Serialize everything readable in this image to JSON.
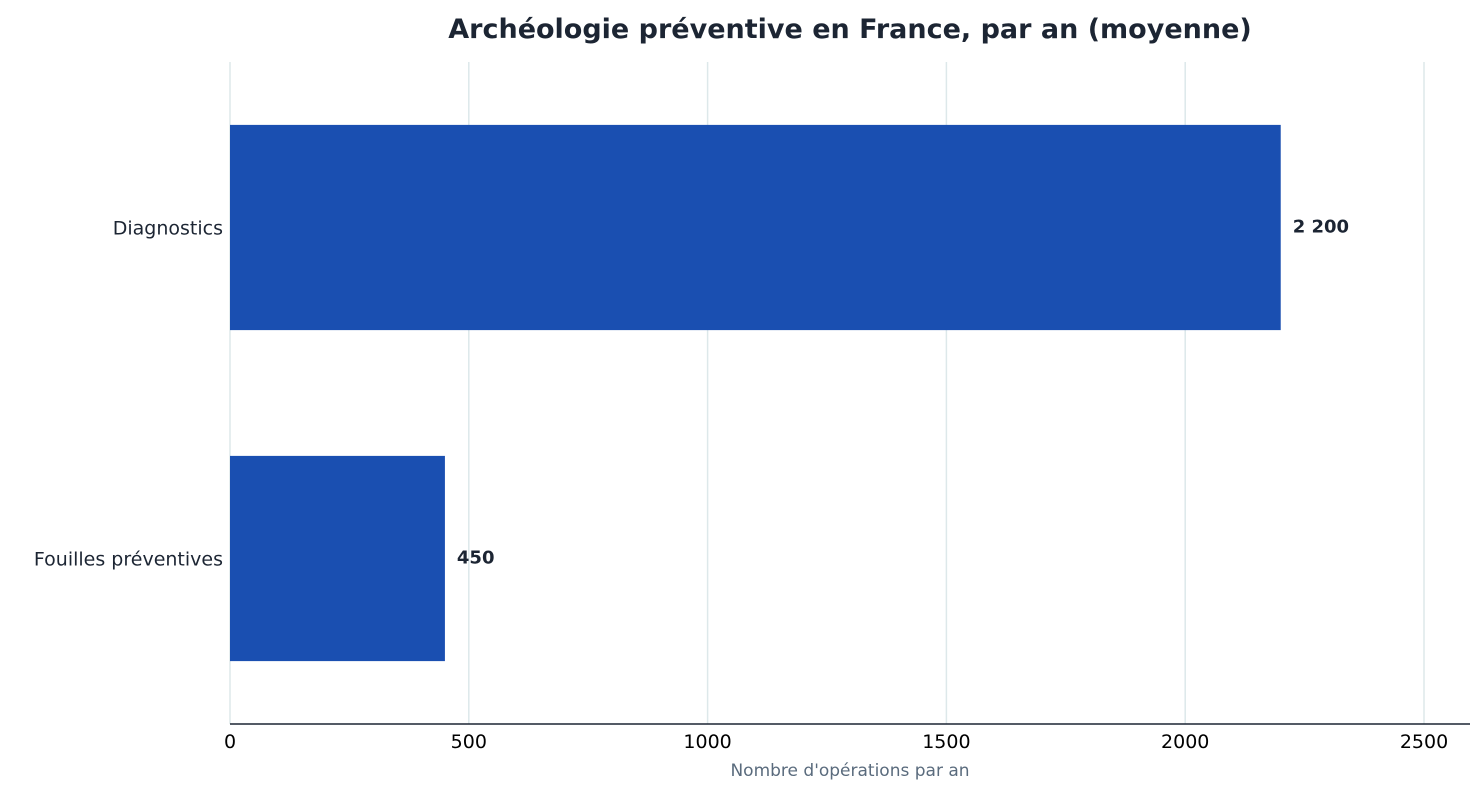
{
  "chart_data": {
    "type": "bar",
    "orientation": "horizontal",
    "title": "Archéologie préventive en France, par an (moyenne)",
    "xlabel": "Nombre d'opérations par an",
    "ylabel": "",
    "categories": [
      "Diagnostics",
      "Fouilles préventives"
    ],
    "values": [
      2200,
      450
    ],
    "value_labels": [
      "2 200",
      "450"
    ],
    "xlim": [
      0,
      2600
    ],
    "xticks": [
      0,
      500,
      1000,
      1500,
      2000,
      2500
    ],
    "xtick_labels": [
      "0",
      "500",
      "1000",
      "1500",
      "2000",
      "2500"
    ],
    "grid": "vertical",
    "bar_color": "#1a4fb1"
  }
}
